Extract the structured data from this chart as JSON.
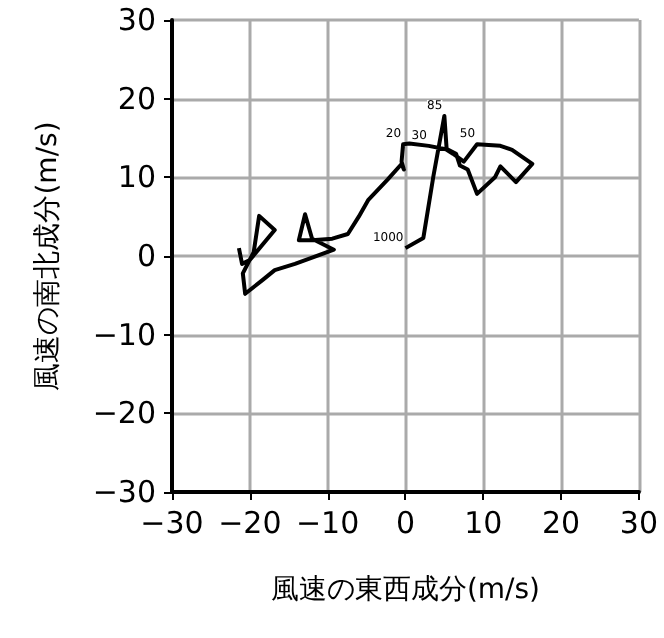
{
  "chart_data": {
    "type": "line",
    "xlabel": "風速の東西成分(m/s)",
    "ylabel": "風速の南北成分(m/s)",
    "x": [
      0,
      2.3,
      3.6,
      4.3,
      5,
      5.3,
      6.1,
      7.5,
      9.2,
      12.2,
      13.7,
      16.3,
      14.2,
      12.2,
      11.5,
      9.2,
      8,
      7,
      6.5,
      5.5,
      3,
      0.5,
      -0.3,
      -0.5,
      -0.2,
      -0.5,
      -2.3,
      -4.8,
      -6,
      -7.4,
      -9.4,
      -12,
      -13.7,
      -12.9,
      -12,
      -9.2,
      -14.2,
      -16.8,
      -18.3,
      -20.6,
      -20.9,
      -19.5,
      -18.8,
      -16.8,
      -20,
      -21,
      -21.4
    ],
    "values": [
      1,
      2.3,
      10.2,
      14,
      17.8,
      13.5,
      13,
      12,
      14.2,
      14,
      13.5,
      11.7,
      9.4,
      11.4,
      10,
      7.9,
      11,
      11.5,
      13,
      13.5,
      14,
      14.3,
      14.2,
      12,
      11,
      11.7,
      9.7,
      7.1,
      5,
      2.8,
      2.2,
      2,
      2,
      5.3,
      2.2,
      0.8,
      -1,
      -1.8,
      -3,
      -4.8,
      -2.2,
      0.5,
      5.1,
      3.3,
      -0.5,
      -1,
      1
    ],
    "color": "#000000",
    "xlim": [
      -30,
      30
    ],
    "xticks": [
      -30,
      -20,
      -10,
      0,
      10,
      20,
      30
    ],
    "ylim": [
      -30,
      30
    ],
    "yticks": [
      -30,
      -20,
      -10,
      0,
      10,
      20,
      30
    ],
    "grid": true,
    "marker": "none",
    "annotations": [
      {
        "text": "1000",
        "x": 0,
        "y": 1
      },
      {
        "text": "20",
        "x": -0.3,
        "y": 14.2
      },
      {
        "text": "85",
        "x": 5,
        "y": 17.8
      },
      {
        "text": "30",
        "x": 3,
        "y": 14
      },
      {
        "text": "50",
        "x": 9.2,
        "y": 14.2
      }
    ]
  }
}
